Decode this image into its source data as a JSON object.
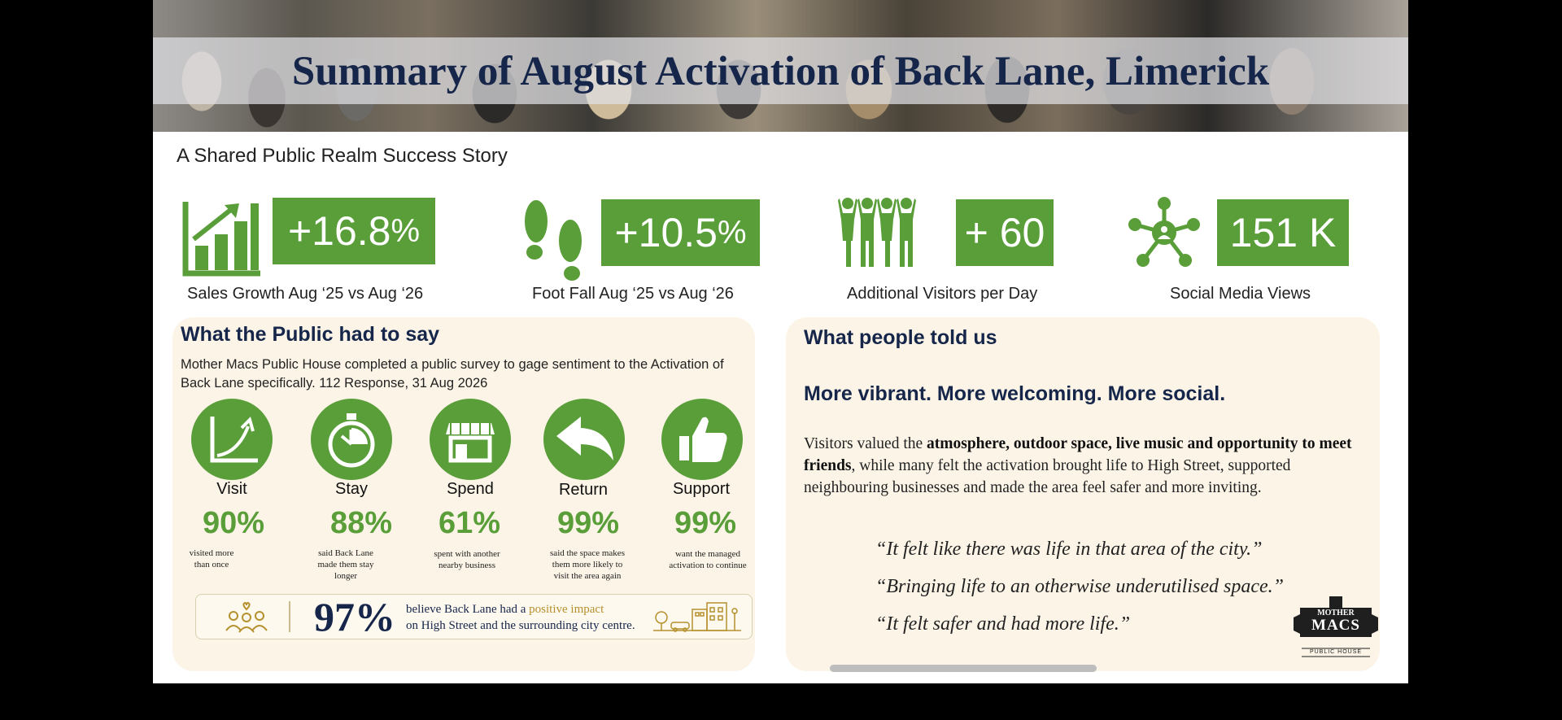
{
  "header": {
    "title": "Summary of August Activation of Back Lane, Limerick",
    "subtitle": "A Shared Public Realm Success Story"
  },
  "stats": [
    {
      "value": "+16.8",
      "unit": "%",
      "label": "Sales Growth Aug ‘25 vs Aug ‘26",
      "icon": "growth-chart-icon"
    },
    {
      "value": "+10.5",
      "unit": "%",
      "label": "Foot Fall Aug ‘25 vs Aug ‘26",
      "icon": "footprints-icon"
    },
    {
      "value": "+ 60",
      "unit": "",
      "label": "Additional Visitors per Day",
      "icon": "people-group-icon"
    },
    {
      "value": "151 K",
      "unit": "",
      "label": "Social Media Views",
      "icon": "network-icon"
    }
  ],
  "public_panel": {
    "heading": "What the Public had to say",
    "intro": "Mother Macs Public House completed a public survey to gage sentiment to the Activation of Back Lane specifically.  112 Response, 31 Aug 2026",
    "metrics": [
      {
        "label": "Visit",
        "percent": "90%",
        "caption": "visited more than once",
        "icon": "growth-curve-icon"
      },
      {
        "label": "Stay",
        "percent": "88%",
        "caption": "said Back Lane made them stay longer",
        "icon": "stopwatch-icon"
      },
      {
        "label": "Spend",
        "percent": "61%",
        "caption": "spent with another nearby business",
        "icon": "storefront-icon"
      },
      {
        "label": "Return",
        "percent": "99%",
        "caption": "said the space makes them more likely to visit the area again",
        "icon": "return-arrow-icon"
      },
      {
        "label": "Support",
        "percent": "99%",
        "caption": "want the managed activation to continue",
        "icon": "thumbs-up-icon"
      }
    ],
    "impact": {
      "percent": "97%",
      "line1_pre": "believe Back Lane had a ",
      "line1_highlight": "positive impact",
      "line2": "on High Street and the surrounding city centre."
    }
  },
  "people_panel": {
    "heading": "What people told us",
    "tagline": "More vibrant. More welcoming. More social.",
    "body_pre": "Visitors valued the ",
    "body_bold": "atmosphere, outdoor space, live music and opportunity to meet friends",
    "body_post": ", while many felt the activation brought life to High Street, supported neighbouring businesses and made the area feel safer and more inviting.",
    "quotes": [
      "“It felt like there was life in that area of the city.”",
      "“Bringing life to an otherwise underutilised space.”",
      "“It felt safer and had more life.”"
    ],
    "logo_text": [
      "MOTHER",
      "MACS",
      "PUBLIC HOUSE"
    ]
  },
  "colors": {
    "accent_green": "#5a9e3a",
    "navy": "#16264a",
    "panel_bg": "#fbf4e7",
    "gold": "#b5902d"
  }
}
